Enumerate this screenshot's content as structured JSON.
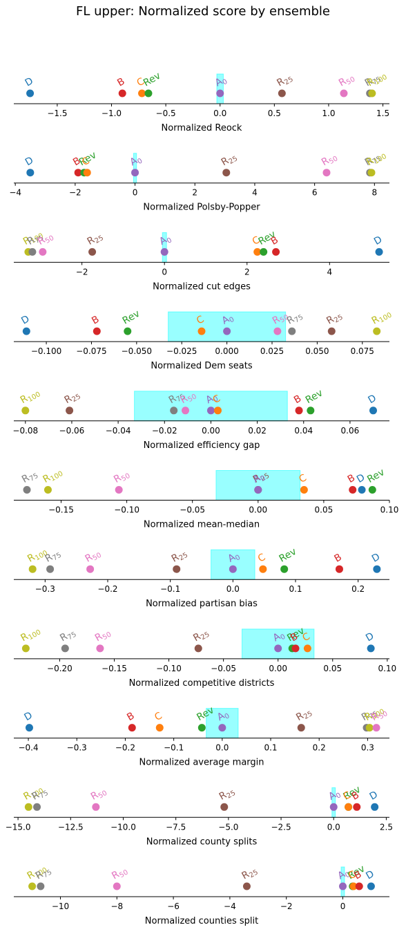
{
  "title": "FL upper: Normalized score by ensemble",
  "colors": {
    "D": "#1f77b4",
    "C": "#ff7f0e",
    "Rev": "#2ca02c",
    "B": "#d62728",
    "A0": "#9467bd",
    "R25": "#8c564b",
    "R50": "#e377c2",
    "R75": "#7f7f7f",
    "R100": "#bcbd22",
    "band": "#00ffff"
  },
  "labels": {
    "D": {
      "text": "D",
      "sub": ""
    },
    "B": {
      "text": "B",
      "sub": ""
    },
    "C": {
      "text": "C",
      "sub": ""
    },
    "Rev": {
      "text": "Rev",
      "sub": ""
    },
    "A0": {
      "text": "A",
      "sub": "0"
    },
    "R25": {
      "text": "R",
      "sub": "25"
    },
    "R50": {
      "text": "R",
      "sub": "50"
    },
    "R75": {
      "text": "R",
      "sub": "75"
    },
    "R100": {
      "text": "R",
      "sub": "100"
    }
  },
  "chart_data": [
    {
      "type": "scatter",
      "xlabel": "Normalized Reock",
      "xlim": [
        -1.9,
        1.56
      ],
      "ticks": [
        -1.5,
        -1.0,
        -0.5,
        0.0,
        0.5,
        1.0,
        1.5
      ],
      "tick_labels": [
        "−1.5",
        "−1.0",
        "−0.5",
        "0.0",
        "0.5",
        "1.0",
        "1.5"
      ],
      "band": [
        -0.03,
        0.03
      ],
      "points": {
        "D": -1.75,
        "B": -0.9,
        "C": -0.72,
        "Rev": -0.66,
        "A0": 0.0,
        "R25": 0.57,
        "R50": 1.14,
        "R75": 1.38,
        "R100": 1.4
      }
    },
    {
      "type": "scatter",
      "xlabel": "Normalized Polsby-Popper",
      "xlim": [
        -4.05,
        8.5
      ],
      "ticks": [
        -4,
        -2,
        0,
        2,
        4,
        6,
        8
      ],
      "tick_labels": [
        "−4",
        "−2",
        "0",
        "2",
        "4",
        "6",
        "8"
      ],
      "band": [
        -0.05,
        0.05
      ],
      "points": {
        "D": -3.5,
        "B": -1.9,
        "Rev": -1.7,
        "C": -1.6,
        "A0": 0.0,
        "R25": 3.05,
        "R50": 6.4,
        "R75": 7.85,
        "R100": 7.9
      }
    },
    {
      "type": "scatter",
      "xlabel": "Normalized cut edges",
      "xlim": [
        -3.65,
        5.45
      ],
      "ticks": [
        -2,
        0,
        2,
        4
      ],
      "tick_labels": [
        "−2",
        "0",
        "2",
        "4"
      ],
      "band": [
        -0.05,
        0.05
      ],
      "points": {
        "R100": -3.3,
        "R75": -3.2,
        "R50": -2.95,
        "R25": -1.75,
        "A0": 0.0,
        "C": 2.25,
        "Rev": 2.4,
        "B": 2.7,
        "D": 5.2
      }
    },
    {
      "type": "scatter",
      "xlabel": "Normalized Dem seats",
      "xlim": [
        -0.118,
        0.09
      ],
      "ticks": [
        -0.1,
        -0.075,
        -0.05,
        -0.025,
        0.0,
        0.025,
        0.05,
        0.075
      ],
      "tick_labels": [
        "−0.100",
        "−0.075",
        "−0.050",
        "−0.025",
        "0.000",
        "0.025",
        "0.050",
        "0.075"
      ],
      "band": [
        -0.0325,
        0.0325
      ],
      "points": {
        "D": -0.111,
        "B": -0.072,
        "Rev": -0.055,
        "C": -0.014,
        "A0": 0.0,
        "R50": 0.028,
        "R75": 0.036,
        "R25": 0.058,
        "R100": 0.083
      }
    },
    {
      "type": "scatter",
      "xlabel": "Normalized efficiency gap",
      "xlim": [
        -0.085,
        0.077
      ],
      "ticks": [
        -0.08,
        -0.06,
        -0.04,
        -0.02,
        0.0,
        0.02,
        0.04,
        0.06
      ],
      "tick_labels": [
        "−0.08",
        "−0.06",
        "−0.04",
        "−0.02",
        "0.00",
        "0.02",
        "0.04",
        "0.06"
      ],
      "band": [
        -0.033,
        0.033
      ],
      "points": {
        "R100": -0.08,
        "R25": -0.061,
        "R75": -0.016,
        "R50": -0.011,
        "A0": 0.0,
        "C": 0.003,
        "B": 0.038,
        "Rev": 0.043,
        "D": 0.07
      }
    },
    {
      "type": "scatter",
      "xlabel": "Normalized mean-median",
      "xlim": [
        -0.186,
        0.1
      ],
      "ticks": [
        -0.15,
        -0.1,
        -0.05,
        0.0,
        0.05,
        0.1
      ],
      "tick_labels": [
        "−0.15",
        "−0.10",
        "−0.05",
        "0.00",
        "0.05",
        "0.10"
      ],
      "band": [
        -0.032,
        0.032
      ],
      "points": {
        "R75": -0.176,
        "R100": -0.16,
        "R50": -0.106,
        "R25": 0.0,
        "A0": 0.0,
        "C": 0.035,
        "B": 0.072,
        "D": 0.079,
        "Rev": 0.087
      }
    },
    {
      "type": "scatter",
      "xlabel": "Normalized partisan bias",
      "xlim": [
        -0.35,
        0.25
      ],
      "ticks": [
        -0.3,
        -0.2,
        -0.1,
        0.0,
        0.1,
        0.2
      ],
      "tick_labels": [
        "−0.3",
        "−0.2",
        "−0.1",
        "0.0",
        "0.1",
        "0.2"
      ],
      "band": [
        -0.035,
        0.035
      ],
      "points": {
        "R100": -0.32,
        "R75": -0.292,
        "R50": -0.228,
        "R25": -0.09,
        "A0": 0.0,
        "C": 0.048,
        "Rev": 0.082,
        "B": 0.17,
        "D": 0.23
      }
    },
    {
      "type": "scatter",
      "xlabel": "Normalized competitive districts",
      "xlim": [
        -0.242,
        0.102
      ],
      "ticks": [
        -0.2,
        -0.15,
        -0.1,
        -0.05,
        0.0,
        0.05,
        0.1
      ],
      "tick_labels": [
        "−0.20",
        "−0.15",
        "−0.10",
        "−0.05",
        "0.00",
        "0.05",
        "0.10"
      ],
      "band": [
        -0.033,
        0.033
      ],
      "points": {
        "R100": -0.231,
        "R75": -0.195,
        "R50": -0.163,
        "R25": -0.073,
        "A0": 0.0,
        "Rev": 0.013,
        "B": 0.016,
        "C": 0.027,
        "D": 0.085
      }
    },
    {
      "type": "scatter",
      "xlabel": "Normalized average margin",
      "xlim": [
        -0.43,
        0.345
      ],
      "ticks": [
        -0.4,
        -0.3,
        -0.2,
        -0.1,
        0.0,
        0.1,
        0.2,
        0.3
      ],
      "tick_labels": [
        "−0.4",
        "−0.3",
        "−0.2",
        "−0.1",
        "0.0",
        "0.1",
        "0.2",
        "0.3"
      ],
      "band": [
        -0.033,
        0.033
      ],
      "points": {
        "D": -0.398,
        "B": -0.186,
        "C": -0.129,
        "Rev": -0.042,
        "A0": 0.0,
        "R25": 0.163,
        "R75": 0.298,
        "R100": 0.304,
        "R50": 0.318
      }
    },
    {
      "type": "scatter",
      "xlabel": "Normalized county splits",
      "xlim": [
        -15.2,
        2.65
      ],
      "ticks": [
        -15.0,
        -12.5,
        -10.0,
        -7.5,
        -5.0,
        -2.5,
        0.0,
        2.5
      ],
      "tick_labels": [
        "−15.0",
        "−12.5",
        "−10.0",
        "−7.5",
        "−5.0",
        "−2.5",
        "0.0",
        "2.5"
      ],
      "band": [
        -0.08,
        0.08
      ],
      "points": {
        "R100": -14.5,
        "R75": -14.1,
        "R50": -11.3,
        "R25": -5.2,
        "A0": 0.0,
        "Rev": 0.7,
        "C": 0.7,
        "B": 1.1,
        "D": 1.95
      }
    },
    {
      "type": "scatter",
      "xlabel": "Normalized counties split",
      "xlim": [
        -11.65,
        1.65
      ],
      "ticks": [
        -10,
        -8,
        -6,
        -4,
        -2,
        0
      ],
      "tick_labels": [
        "−10",
        "−8",
        "−6",
        "−4",
        "−2",
        "0"
      ],
      "band": [
        -0.06,
        0.06
      ],
      "points": {
        "R100": -11.0,
        "R75": -10.7,
        "R50": -8.0,
        "R25": -3.4,
        "A0": 0.0,
        "Rev": 0.35,
        "C": 0.38,
        "B": 0.58,
        "D": 1.0
      }
    }
  ]
}
